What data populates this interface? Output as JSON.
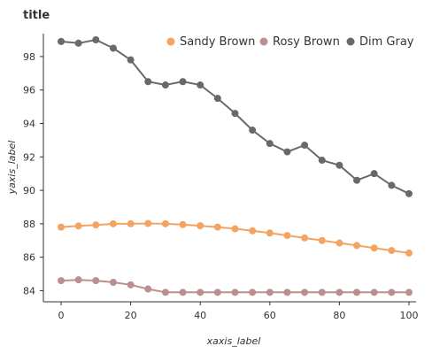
{
  "chart_data": {
    "type": "line",
    "title": "title",
    "xlabel": "xaxis_label",
    "ylabel": "yaxis_label",
    "xlim": [
      0,
      100
    ],
    "ylim": [
      83.6,
      99.0
    ],
    "x_ticks": [
      0,
      20,
      40,
      60,
      80,
      100
    ],
    "y_ticks": [
      84,
      86,
      88,
      90,
      92,
      94,
      96,
      98
    ],
    "grid": false,
    "legend_position": "top-right",
    "series": [
      {
        "name": "Sandy Brown",
        "color": "#f4a460",
        "x": [
          0,
          5,
          10,
          15,
          20,
          25,
          30,
          35,
          40,
          45,
          50,
          55,
          60,
          65,
          70,
          75,
          80,
          85,
          90,
          95,
          100
        ],
        "values": [
          87.8,
          87.87,
          87.93,
          88.0,
          88.0,
          88.02,
          88.0,
          87.95,
          87.88,
          87.8,
          87.7,
          87.58,
          87.45,
          87.3,
          87.15,
          87.0,
          86.85,
          86.7,
          86.55,
          86.4,
          86.25
        ]
      },
      {
        "name": "Rosy Brown",
        "color": "#bc8f8f",
        "x": [
          0,
          5,
          10,
          15,
          20,
          25,
          30,
          35,
          40,
          45,
          50,
          55,
          60,
          65,
          70,
          75,
          80,
          85,
          90,
          95,
          100
        ],
        "values": [
          84.6,
          84.65,
          84.6,
          84.5,
          84.35,
          84.1,
          83.9,
          83.9,
          83.9,
          83.9,
          83.9,
          83.9,
          83.9,
          83.9,
          83.9,
          83.9,
          83.9,
          83.9,
          83.9,
          83.9,
          83.9
        ]
      },
      {
        "name": "Dim Gray",
        "color": "#696969",
        "x": [
          0,
          5,
          10,
          15,
          20,
          25,
          30,
          35,
          40,
          45,
          50,
          55,
          60,
          65,
          70,
          75,
          80,
          85,
          90,
          95,
          100
        ],
        "values": [
          98.9,
          98.8,
          99.0,
          98.5,
          97.8,
          96.5,
          96.3,
          96.5,
          96.3,
          95.5,
          94.6,
          93.6,
          92.8,
          92.3,
          92.7,
          91.8,
          91.5,
          90.6,
          91.0,
          90.3,
          89.8
        ]
      }
    ]
  }
}
